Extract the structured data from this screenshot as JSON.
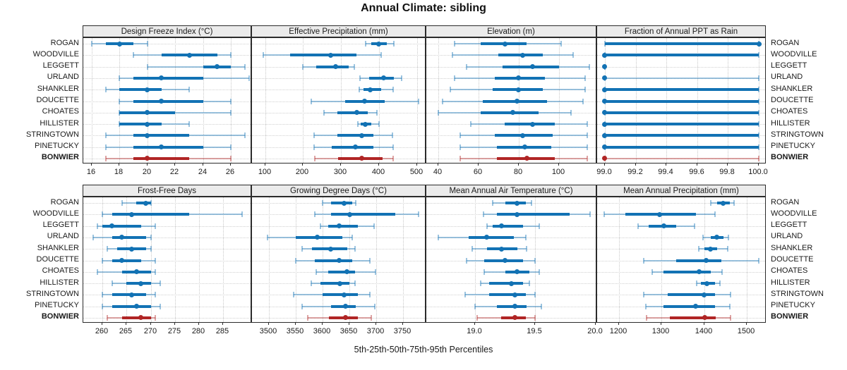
{
  "title": "Annual Climate: sibling",
  "caption": "5th-25th-50th-75th-95th Percentiles",
  "sites": [
    "ROGAN",
    "WOODVILLE",
    "LEGGETT",
    "URLAND",
    "SHANKLER",
    "DOUCETTE",
    "CHOATES",
    "HILLISTER",
    "STRINGTOWN",
    "PINETUCKY",
    "BONWIER"
  ],
  "highlight_site": "BONWIER",
  "colors": {
    "series_blue": "#1272b4",
    "series_blue_light": "rgba(18,114,180,0.42)",
    "highlight_red": "#b02525",
    "highlight_red_light": "rgba(176,37,37,0.42)",
    "header_bg": "#ebebeb",
    "border": "#2b2b2b",
    "grid": "#c8c8c8"
  },
  "percentiles": [
    "5th",
    "25th",
    "50th",
    "75th",
    "95th"
  ],
  "chart_data": [
    {
      "type": "dot-whisker",
      "title": "Design Freeze Index (°C)",
      "row": 0,
      "col": 0,
      "xlim": [
        15.4,
        27.5
      ],
      "ticks": [
        16,
        18,
        20,
        22,
        24,
        26
      ],
      "tick_labels": [
        "16",
        "18",
        "20",
        "22",
        "24",
        "26"
      ],
      "values": [
        [
          16,
          17,
          18,
          19,
          20
        ],
        [
          19,
          21,
          23,
          25,
          26
        ],
        [
          20,
          24,
          25,
          26,
          27
        ],
        [
          18,
          19,
          21,
          24,
          27.3
        ],
        [
          17,
          18,
          20,
          21,
          23
        ],
        [
          18,
          19,
          21,
          24,
          26
        ],
        [
          18,
          18,
          20,
          22,
          26
        ],
        [
          18,
          18,
          20,
          21,
          23
        ],
        [
          17,
          19,
          20,
          23,
          27
        ],
        [
          17,
          19,
          21,
          24,
          26
        ],
        [
          17,
          19,
          20,
          23,
          26
        ]
      ]
    },
    {
      "type": "dot-whisker",
      "title": "Effective Precipitation (mm)",
      "row": 0,
      "col": 1,
      "xlim": [
        65,
        525
      ],
      "ticks": [
        100,
        200,
        300,
        400,
        500
      ],
      "tick_labels": [
        "100",
        "200",
        "300",
        "400",
        "500"
      ],
      "values": [
        [
          365,
          380,
          400,
          420,
          440
        ],
        [
          95,
          165,
          272,
          340,
          405
        ],
        [
          200,
          235,
          285,
          320,
          335
        ],
        [
          350,
          375,
          413,
          440,
          460
        ],
        [
          348,
          360,
          377,
          405,
          437
        ],
        [
          222,
          310,
          362,
          415,
          505
        ],
        [
          255,
          290,
          342,
          370,
          395
        ],
        [
          345,
          352,
          363,
          380,
          400
        ],
        [
          228,
          290,
          355,
          385,
          435
        ],
        [
          228,
          275,
          337,
          385,
          437
        ],
        [
          230,
          293,
          355,
          410,
          437
        ]
      ]
    },
    {
      "type": "dot-whisker",
      "title": "Elevation (m)",
      "row": 0,
      "col": 2,
      "xlim": [
        34,
        119
      ],
      "ticks": [
        40,
        60,
        80,
        100
      ],
      "tick_labels": [
        "40",
        "60",
        "80",
        "100"
      ],
      "values": [
        [
          48,
          61,
          73,
          84,
          101
        ],
        [
          47,
          70,
          82,
          92,
          107
        ],
        [
          54,
          72,
          87,
          100,
          115
        ],
        [
          48,
          68,
          80,
          93,
          113
        ],
        [
          46,
          67,
          80,
          92,
          113
        ],
        [
          42,
          62,
          79,
          94,
          112
        ],
        [
          40,
          61,
          77,
          90,
          106
        ],
        [
          56,
          73,
          87,
          98,
          114
        ],
        [
          51,
          68,
          82,
          97,
          114
        ],
        [
          51,
          69,
          83,
          96,
          114
        ],
        [
          51,
          69,
          84,
          98,
          114
        ]
      ]
    },
    {
      "type": "dot-whisker",
      "title": "Fraction of Annual PPT as Rain",
      "row": 0,
      "col": 3,
      "xlim": [
        98.95,
        100.05
      ],
      "ticks": [
        99.0,
        99.2,
        99.4,
        99.6,
        99.8,
        100.0
      ],
      "tick_labels": [
        "99.0",
        "99.2",
        "99.4",
        "99.6",
        "99.8",
        "100.0"
      ],
      "values": [
        [
          99,
          99,
          100,
          100,
          100
        ],
        [
          99,
          99,
          99,
          100,
          100
        ],
        [
          99,
          99,
          99,
          99,
          99
        ],
        [
          99,
          99,
          99,
          99,
          100
        ],
        [
          99,
          99,
          99,
          100,
          100
        ],
        [
          99,
          99,
          99,
          100,
          100
        ],
        [
          99,
          99,
          99,
          100,
          100
        ],
        [
          99,
          99,
          99,
          100,
          100
        ],
        [
          99,
          99,
          99,
          100,
          100
        ],
        [
          99,
          99,
          99,
          100,
          100
        ],
        [
          99,
          99,
          99,
          99,
          100
        ]
      ]
    },
    {
      "type": "dot-whisker",
      "title": "Frost-Free Days",
      "row": 1,
      "col": 0,
      "xlim": [
        256,
        291
      ],
      "ticks": [
        260,
        265,
        270,
        275,
        280,
        285
      ],
      "tick_labels": [
        "260",
        "265",
        "270",
        "275",
        "280",
        "285"
      ],
      "values": [
        [
          264,
          267,
          269,
          270,
          270
        ],
        [
          260,
          262,
          266,
          278,
          289
        ],
        [
          259,
          260,
          262,
          268,
          271
        ],
        [
          258,
          262,
          264,
          269,
          270
        ],
        [
          261,
          263,
          266,
          269,
          270
        ],
        [
          260,
          262,
          264,
          268,
          271
        ],
        [
          259,
          264,
          267,
          270,
          271
        ],
        [
          262,
          265,
          268,
          270,
          272
        ],
        [
          260,
          262,
          266,
          269,
          271
        ],
        [
          260,
          262,
          267,
          270,
          272
        ],
        [
          261,
          264,
          268,
          270,
          271
        ]
      ]
    },
    {
      "type": "dot-whisker",
      "title": "Growing Degree Days (°C)",
      "row": 1,
      "col": 1,
      "xlim": [
        3468,
        3793
      ],
      "ticks": [
        3500,
        3550,
        3600,
        3650,
        3700,
        3750
      ],
      "tick_labels": [
        "3500",
        "3550",
        "3600",
        "3650",
        "3700",
        "3750"
      ],
      "values": [
        [
          3600,
          3615,
          3640,
          3655,
          3662
        ],
        [
          3585,
          3615,
          3650,
          3735,
          3778
        ],
        [
          3595,
          3610,
          3630,
          3665,
          3695
        ],
        [
          3497,
          3550,
          3590,
          3637,
          3655
        ],
        [
          3562,
          3580,
          3615,
          3645,
          3660
        ],
        [
          3550,
          3585,
          3630,
          3655,
          3688
        ],
        [
          3588,
          3610,
          3645,
          3660,
          3698
        ],
        [
          3578,
          3595,
          3632,
          3650,
          3660
        ],
        [
          3545,
          3600,
          3640,
          3665,
          3688
        ],
        [
          3562,
          3615,
          3642,
          3662,
          3697
        ],
        [
          3572,
          3612,
          3642,
          3665,
          3690
        ]
      ]
    },
    {
      "type": "dot-whisker",
      "title": "Mean Annual Air Temperature (°C)",
      "row": 1,
      "col": 2,
      "xlim": [
        18.6,
        20.01
      ],
      "ticks": [
        19.0,
        19.5,
        20.0
      ],
      "tick_labels": [
        "19.0",
        "19.5",
        "20.0"
      ],
      "values": [
        [
          19.15,
          19.25,
          19.35,
          19.42,
          19.47
        ],
        [
          19.07,
          19.18,
          19.35,
          19.78,
          19.95
        ],
        [
          19.1,
          19.15,
          19.22,
          19.4,
          19.53
        ],
        [
          18.7,
          18.95,
          19.1,
          19.32,
          19.42
        ],
        [
          18.98,
          19.1,
          19.22,
          19.35,
          19.43
        ],
        [
          18.93,
          19.08,
          19.25,
          19.4,
          19.5
        ],
        [
          19.08,
          19.25,
          19.35,
          19.45,
          19.53
        ],
        [
          19.05,
          19.12,
          19.3,
          19.4,
          19.45
        ],
        [
          18.92,
          19.12,
          19.33,
          19.42,
          19.5
        ],
        [
          19.0,
          19.18,
          19.33,
          19.43,
          19.55
        ],
        [
          19.02,
          19.22,
          19.33,
          19.42,
          19.5
        ]
      ]
    },
    {
      "type": "dot-whisker",
      "title": "Mean Annual Precipitation (mm)",
      "row": 1,
      "col": 3,
      "xlim": [
        1148,
        1547
      ],
      "ticks": [
        1200,
        1300,
        1400,
        1500
      ],
      "tick_labels": [
        "1200",
        "1300",
        "1400",
        "1500"
      ],
      "values": [
        [
          1415,
          1430,
          1445,
          1460,
          1470
        ],
        [
          1165,
          1215,
          1295,
          1380,
          1425
        ],
        [
          1245,
          1270,
          1305,
          1335,
          1378
        ],
        [
          1398,
          1415,
          1430,
          1445,
          1458
        ],
        [
          1388,
          1400,
          1415,
          1430,
          1455
        ],
        [
          1258,
          1335,
          1405,
          1440,
          1528
        ],
        [
          1278,
          1305,
          1388,
          1415,
          1442
        ],
        [
          1382,
          1392,
          1407,
          1425,
          1437
        ],
        [
          1258,
          1315,
          1400,
          1425,
          1462
        ],
        [
          1263,
          1305,
          1380,
          1425,
          1460
        ],
        [
          1265,
          1320,
          1402,
          1428,
          1462
        ]
      ]
    }
  ]
}
